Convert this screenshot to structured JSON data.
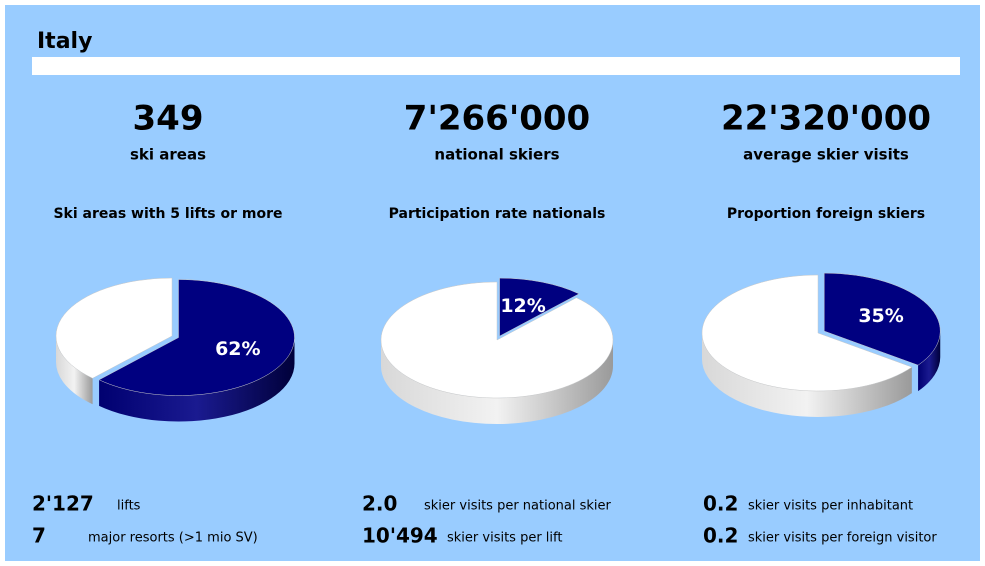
{
  "header": {
    "title": "Italy"
  },
  "headline": [
    {
      "value": "349",
      "label": "ski areas"
    },
    {
      "value": "7'266'000",
      "label": "national skiers"
    },
    {
      "value": "22'320'000",
      "label": "average skier visits"
    }
  ],
  "chart_data": [
    {
      "type": "pie",
      "title": "Ski areas with 5 lifts or more",
      "values": [
        62,
        38
      ],
      "value_labels": [
        "62%",
        null
      ],
      "colors": [
        "#000080",
        "#ffffff"
      ]
    },
    {
      "type": "pie",
      "title": "Participation rate nationals",
      "values": [
        12,
        88
      ],
      "value_labels": [
        "12%",
        null
      ],
      "colors": [
        "#000080",
        "#ffffff"
      ]
    },
    {
      "type": "pie",
      "title": "Proportion foreign skiers",
      "values": [
        35,
        65
      ],
      "value_labels": [
        "35%",
        null
      ],
      "colors": [
        "#000080",
        "#ffffff"
      ]
    }
  ],
  "stats": [
    [
      {
        "value": "2'127",
        "label": "lifts"
      },
      {
        "value": "7",
        "label": "major resorts (>1 mio SV)"
      }
    ],
    [
      {
        "value": "2.0",
        "label": "skier visits per national skier"
      },
      {
        "value": "10'494",
        "label": "skier visits per lift"
      }
    ],
    [
      {
        "value": "0.2",
        "label": "skier visits per inhabitant"
      },
      {
        "value": "0.2",
        "label": "skier visits per foreign visitor"
      }
    ]
  ]
}
